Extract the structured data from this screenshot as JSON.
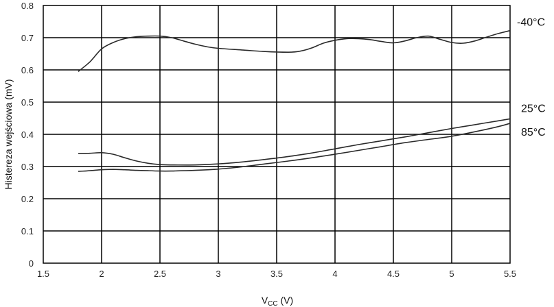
{
  "chart_data": {
    "type": "line",
    "ylabel": "Histereza wejściowa (mV)",
    "xlabel": {
      "main": "V",
      "sub": "CC",
      "unit": " (V)"
    },
    "xlim": [
      1.5,
      5.5
    ],
    "ylim": [
      0,
      0.8
    ],
    "x_ticks": [
      1.5,
      2,
      2.5,
      3,
      3.5,
      4,
      4.5,
      5,
      5.5
    ],
    "y_ticks": [
      0,
      0.1,
      0.2,
      0.3,
      0.4,
      0.5,
      0.6,
      0.7,
      0.8
    ],
    "x_tick_labels": [
      "1.5",
      "2",
      "2.5",
      "3",
      "3.5",
      "4",
      "4.5",
      "5",
      "5.5"
    ],
    "y_tick_labels": [
      "0",
      "0.1",
      "0.2",
      "0.3",
      "0.4",
      "0.5",
      "0.6",
      "0.7",
      "0.8"
    ],
    "grid": true,
    "series": [
      {
        "name": "-40°C",
        "x": [
          1.8,
          1.9,
          2.0,
          2.1,
          2.2,
          2.3,
          2.4,
          2.5,
          2.6,
          2.7,
          2.8,
          2.9,
          3.0,
          3.2,
          3.4,
          3.6,
          3.7,
          3.8,
          3.9,
          4.0,
          4.1,
          4.2,
          4.3,
          4.4,
          4.5,
          4.6,
          4.7,
          4.8,
          4.9,
          5.0,
          5.1,
          5.2,
          5.3,
          5.4,
          5.5
        ],
        "values": [
          0.595,
          0.625,
          0.665,
          0.685,
          0.697,
          0.703,
          0.705,
          0.705,
          0.7,
          0.69,
          0.68,
          0.672,
          0.667,
          0.662,
          0.657,
          0.655,
          0.658,
          0.668,
          0.683,
          0.692,
          0.697,
          0.697,
          0.694,
          0.688,
          0.684,
          0.69,
          0.7,
          0.705,
          0.695,
          0.685,
          0.683,
          0.69,
          0.702,
          0.713,
          0.722
        ]
      },
      {
        "name": "25°C",
        "x": [
          1.8,
          1.9,
          2.0,
          2.1,
          2.2,
          2.3,
          2.4,
          2.5,
          2.6,
          2.8,
          3.0,
          3.2,
          3.4,
          3.6,
          3.8,
          4.0,
          4.2,
          4.4,
          4.6,
          4.8,
          5.0,
          5.2,
          5.4,
          5.5
        ],
        "values": [
          0.34,
          0.341,
          0.343,
          0.338,
          0.327,
          0.317,
          0.31,
          0.306,
          0.305,
          0.305,
          0.308,
          0.314,
          0.322,
          0.331,
          0.342,
          0.355,
          0.368,
          0.38,
          0.392,
          0.405,
          0.418,
          0.43,
          0.442,
          0.448
        ]
      },
      {
        "name": "85°C",
        "x": [
          1.8,
          1.9,
          2.0,
          2.1,
          2.2,
          2.3,
          2.4,
          2.5,
          2.6,
          2.8,
          3.0,
          3.2,
          3.4,
          3.6,
          3.8,
          4.0,
          4.2,
          4.4,
          4.6,
          4.8,
          5.0,
          5.2,
          5.4,
          5.5
        ],
        "values": [
          0.285,
          0.287,
          0.29,
          0.291,
          0.29,
          0.288,
          0.287,
          0.286,
          0.286,
          0.288,
          0.292,
          0.299,
          0.308,
          0.317,
          0.327,
          0.338,
          0.35,
          0.362,
          0.374,
          0.384,
          0.394,
          0.408,
          0.424,
          0.434
        ]
      }
    ]
  }
}
